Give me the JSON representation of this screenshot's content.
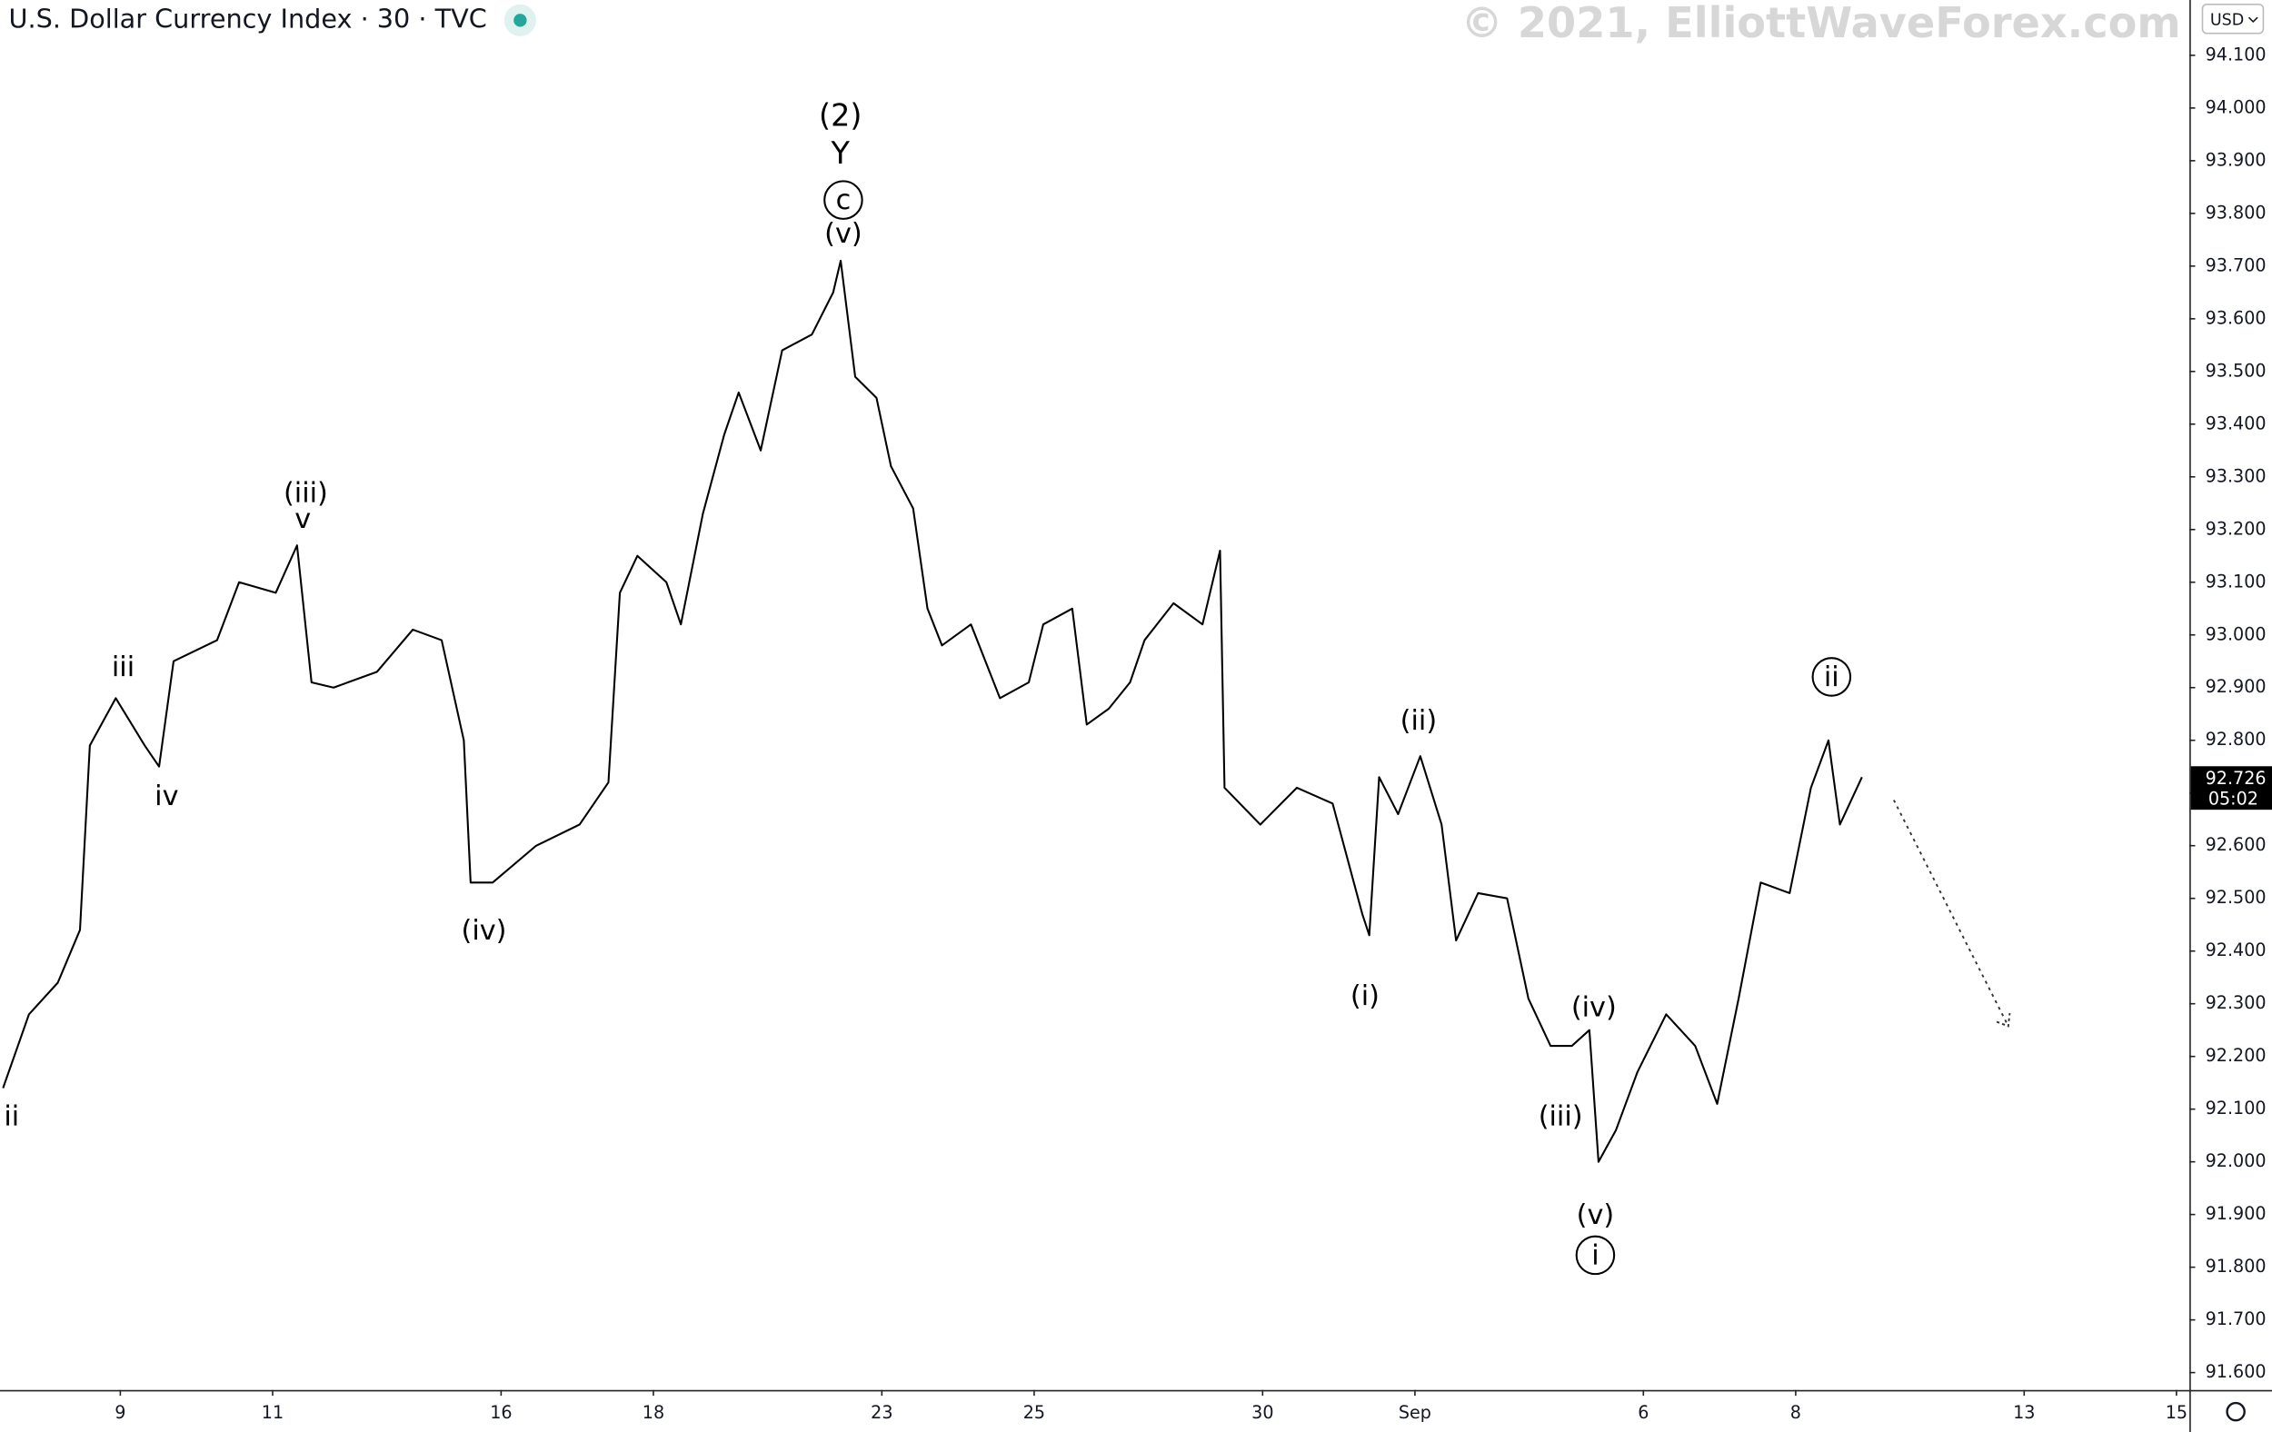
{
  "chart_data": {
    "type": "line",
    "title": "U.S. Dollar Currency Index · 30 · TVC",
    "watermark": "© 2021, ElliottWaveForex.com",
    "currency": "USD",
    "countdown": "05:02",
    "last_price": 92.726,
    "color": "#000000",
    "grid": false,
    "xlim": [
      -1.58,
      27.17
    ],
    "ylim": [
      91.567,
      94.205
    ],
    "xticks": [
      {
        "value": 0,
        "label": "9"
      },
      {
        "value": 2,
        "label": "11"
      },
      {
        "value": 5,
        "label": "16"
      },
      {
        "value": 7,
        "label": "18"
      },
      {
        "value": 10,
        "label": "23"
      },
      {
        "value": 12,
        "label": "25"
      },
      {
        "value": 15,
        "label": "30"
      },
      {
        "value": 17,
        "label": "Sep"
      },
      {
        "value": 20,
        "label": "6"
      },
      {
        "value": 22,
        "label": "8"
      },
      {
        "value": 25,
        "label": "13"
      },
      {
        "value": 27,
        "label": "15"
      }
    ],
    "yticks": [
      {
        "value": 91.6,
        "label": "91.600"
      },
      {
        "value": 91.7,
        "label": "91.700"
      },
      {
        "value": 91.8,
        "label": "91.800"
      },
      {
        "value": 91.9,
        "label": "91.900"
      },
      {
        "value": 92,
        "label": "92.000"
      },
      {
        "value": 92.1,
        "label": "92.100"
      },
      {
        "value": 92.2,
        "label": "92.200"
      },
      {
        "value": 92.3,
        "label": "92.300"
      },
      {
        "value": 92.4,
        "label": "92.400"
      },
      {
        "value": 92.5,
        "label": "92.500"
      },
      {
        "value": 92.6,
        "label": "92.600"
      },
      {
        "value": 92.7,
        "label": "92.700"
      },
      {
        "value": 92.8,
        "label": "92.800"
      },
      {
        "value": 92.9,
        "label": "92.900"
      },
      {
        "value": 93,
        "label": "93.000"
      },
      {
        "value": 93.1,
        "label": "93.100"
      },
      {
        "value": 93.2,
        "label": "93.200"
      },
      {
        "value": 93.3,
        "label": "93.300"
      },
      {
        "value": 93.4,
        "label": "93.400"
      },
      {
        "value": 93.5,
        "label": "93.500"
      },
      {
        "value": 93.6,
        "label": "93.600"
      },
      {
        "value": 93.7,
        "label": "93.700"
      },
      {
        "value": 93.8,
        "label": "93.800"
      },
      {
        "value": 93.9,
        "label": "93.900"
      },
      {
        "value": 94,
        "label": "94.000"
      },
      {
        "value": 94.1,
        "label": "94.100"
      }
    ],
    "x": [
      -1.54,
      -1.2,
      -0.82,
      -0.53,
      -0.4,
      -0.06,
      0.32,
      0.51,
      0.7,
      1.27,
      1.56,
      2.04,
      2.32,
      2.51,
      2.8,
      3.37,
      3.84,
      4.22,
      4.51,
      4.6,
      4.89,
      5.46,
      6.03,
      6.41,
      6.56,
      6.79,
      7.17,
      7.36,
      7.65,
      7.93,
      8.12,
      8.41,
      8.69,
      9.08,
      9.36,
      9.46,
      9.65,
      9.93,
      10.12,
      10.41,
      10.6,
      10.79,
      11.17,
      11.55,
      11.93,
      12.12,
      12.5,
      12.69,
      12.98,
      13.26,
      13.45,
      13.83,
      14.21,
      14.44,
      14.5,
      14.97,
      15.45,
      15.92,
      16.31,
      16.4,
      16.53,
      16.78,
      17.07,
      17.35,
      17.54,
      17.83,
      18.21,
      18.49,
      18.78,
      19.06,
      19.29,
      19.41,
      19.64,
      19.92,
      20.3,
      20.68,
      20.97,
      21.25,
      21.54,
      21.92,
      22.2,
      22.43,
      22.58,
      22.87
    ],
    "values": [
      92.14,
      92.28,
      92.34,
      92.44,
      92.79,
      92.88,
      92.79,
      92.75,
      92.95,
      92.99,
      93.1,
      93.08,
      93.17,
      92.91,
      92.9,
      92.93,
      93.01,
      92.99,
      92.8,
      92.53,
      92.53,
      92.6,
      92.64,
      92.72,
      93.08,
      93.15,
      93.1,
      93.02,
      93.23,
      93.38,
      93.46,
      93.35,
      93.54,
      93.57,
      93.65,
      93.71,
      93.49,
      93.45,
      93.32,
      93.24,
      93.05,
      92.98,
      93.02,
      92.88,
      92.91,
      93.02,
      93.05,
      92.83,
      92.86,
      92.91,
      92.99,
      93.06,
      93.02,
      93.16,
      92.71,
      92.64,
      92.71,
      92.68,
      92.47,
      92.43,
      92.73,
      92.66,
      92.77,
      92.64,
      92.42,
      92.51,
      92.5,
      92.31,
      92.22,
      92.22,
      92.25,
      92,
      92.06,
      92.17,
      92.28,
      92.22,
      92.11,
      92.31,
      92.53,
      92.51,
      92.71,
      92.8,
      92.64,
      92.73
    ],
    "annotations": [
      "(2)",
      "Y",
      "c",
      "(v)",
      "(iii)",
      "v",
      "iii",
      "iv",
      "ii",
      "(iv)",
      "(i)",
      "(ii)",
      "(iv)",
      "(iii)",
      "(v)",
      "i",
      "ii"
    ]
  }
}
